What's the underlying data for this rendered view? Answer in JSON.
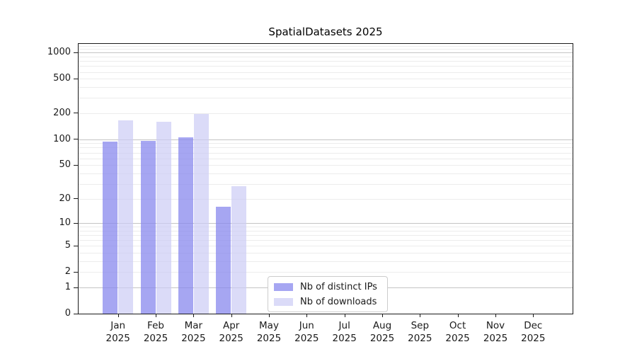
{
  "title": "SpatialDatasets 2025",
  "chart_data": {
    "type": "bar",
    "title": "SpatialDatasets 2025",
    "categories": [
      "Jan 2025",
      "Feb 2025",
      "Mar 2025",
      "Apr 2025",
      "May 2025",
      "Jun 2025",
      "Jul 2025",
      "Aug 2025",
      "Sep 2025",
      "Oct 2025",
      "Nov 2025",
      "Dec 2025"
    ],
    "series": [
      {
        "name": "Nb of distinct IPs",
        "color": "#a8a8f0",
        "fill": "rgba(136,136,238,0.75)",
        "values": [
          94,
          95,
          106,
          16,
          0,
          0,
          0,
          0,
          0,
          0,
          0,
          0
        ]
      },
      {
        "name": "Nb of downloads",
        "color": "#dcdcf8",
        "fill": "rgba(204,204,245,0.7)",
        "values": [
          165,
          159,
          195,
          28,
          0,
          0,
          0,
          0,
          0,
          0,
          0,
          0
        ]
      }
    ],
    "xlabel": "",
    "ylabel": "",
    "yscale": "log1p",
    "ylim": [
      0,
      1258
    ],
    "yticks": [
      0,
      1,
      2,
      5,
      10,
      20,
      50,
      100,
      200,
      500,
      1000
    ],
    "grid": true,
    "legend_position": "lower center"
  }
}
